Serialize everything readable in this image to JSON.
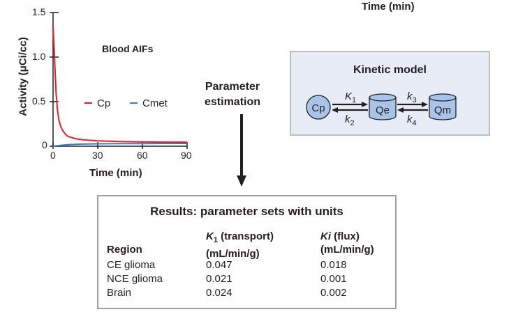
{
  "top_label": "Time (min)",
  "plot": {
    "title": "Blood AIFs",
    "ylabel": "Activity (μCi/cc)",
    "xlabel": "Time (min)",
    "y_ticks": [
      "1.5",
      "1.0",
      "0.5",
      "0"
    ],
    "x_ticks": [
      "0",
      "30",
      "60",
      "90"
    ],
    "legend": [
      {
        "label": "Cp",
        "color": "#ed1c24"
      },
      {
        "label": "Cmet",
        "color": "#3a7fc1"
      }
    ]
  },
  "chart_data": {
    "type": "line",
    "title": "Blood AIFs",
    "xlabel": "Time (min)",
    "ylabel": "Activity (μCi/cc)",
    "xlim": [
      0,
      90
    ],
    "ylim": [
      0,
      1.5
    ],
    "series": [
      {
        "name": "Cp",
        "color": "#ed1c24",
        "x": [
          0,
          1,
          2,
          3,
          4,
          5,
          6,
          8,
          10,
          15,
          20,
          30,
          45,
          60,
          75,
          90
        ],
        "y": [
          1.35,
          1.0,
          0.6,
          0.4,
          0.29,
          0.23,
          0.19,
          0.14,
          0.11,
          0.085,
          0.072,
          0.06,
          0.052,
          0.048,
          0.046,
          0.045
        ]
      },
      {
        "name": "Cmet",
        "color": "#3a7fc1",
        "x": [
          0,
          2,
          5,
          10,
          20,
          30,
          45,
          60,
          75,
          90
        ],
        "y": [
          0,
          0.004,
          0.01,
          0.018,
          0.024,
          0.027,
          0.029,
          0.03,
          0.031,
          0.031
        ]
      }
    ]
  },
  "arrow_label": [
    "Parameter",
    "estimation"
  ],
  "kinetic_model": {
    "title": "Kinetic model",
    "compartments": [
      "Cp",
      "Qe",
      "Qm"
    ],
    "rates": [
      {
        "sym": "K",
        "sub": "1"
      },
      {
        "sym": "k",
        "sub": "2"
      },
      {
        "sym": "k",
        "sub": "3"
      },
      {
        "sym": "k",
        "sub": "4"
      }
    ],
    "colors": {
      "fill": "#a9c4e9",
      "box": "#e7ecf6",
      "border": "#bcbec0"
    }
  },
  "results": {
    "title": "Results: parameter sets with units",
    "header": {
      "region": "Region",
      "k1_sym": "K",
      "k1_sub": "1",
      "k1_rest": " (transport)",
      "k1_unit": "(mL/min/g)",
      "ki_sym": "Ki",
      "ki_rest": " (flux)",
      "ki_unit": "(mL/min/g)"
    },
    "rows": [
      {
        "region": "CE glioma",
        "k1": "0.047",
        "ki": "0.018"
      },
      {
        "region": "NCE glioma",
        "k1": "0.021",
        "ki": "0.001"
      },
      {
        "region": "Brain",
        "k1": "0.024",
        "ki": "0.002"
      }
    ]
  }
}
